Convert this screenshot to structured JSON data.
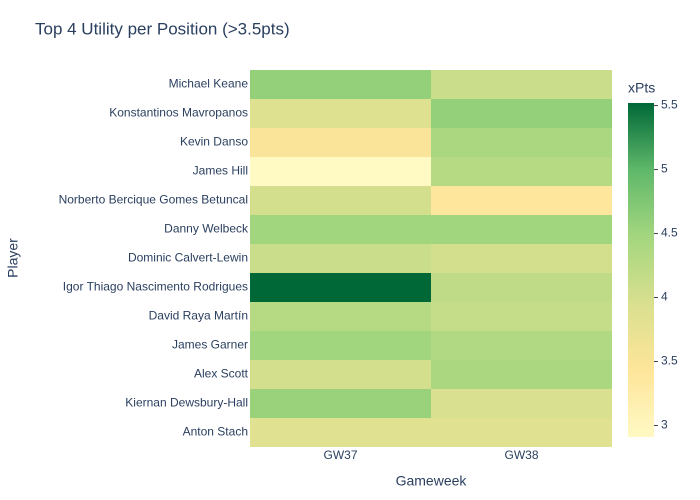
{
  "chart_data": {
    "type": "heatmap",
    "title": "Top 4 Utility per Position (>3.5pts)",
    "x_label": "Gameweek",
    "y_label": "Player",
    "colorbar_title": "xPts",
    "x": [
      "GW37",
      "GW38"
    ],
    "y": [
      "Michael Keane",
      "Konstantinos Mavropanos",
      "Kevin Danso",
      "James Hill",
      "Norberto Bercique Gomes Betuncal",
      "Danny Welbeck",
      "Dominic Calvert-Lewin",
      "Igor Thiago Nascimento Rodrigues",
      "David Raya Martín",
      "James Garner",
      "Alex Scott",
      "Kiernan Dewsbury-Hall",
      "Anton Stach"
    ],
    "z": [
      [
        4.6,
        4.1
      ],
      [
        3.9,
        4.6
      ],
      [
        3.5,
        4.4
      ],
      [
        2.91,
        4.3
      ],
      [
        4.0,
        3.4
      ],
      [
        4.5,
        4.5
      ],
      [
        4.1,
        4.0
      ],
      [
        5.52,
        4.2
      ],
      [
        4.3,
        4.15
      ],
      [
        4.5,
        4.35
      ],
      [
        4.0,
        4.4
      ],
      [
        4.55,
        3.95
      ],
      [
        3.85,
        3.85
      ]
    ],
    "zlim": [
      2.91,
      5.52
    ],
    "zticks": [
      3,
      3.5,
      4,
      4.5,
      5,
      5.5
    ],
    "colorscale": [
      [
        0,
        "#fff9c4"
      ],
      [
        0.2,
        "#fee59a"
      ],
      [
        0.4,
        "#d9e08f"
      ],
      [
        0.6,
        "#a4d67f"
      ],
      [
        0.8,
        "#5fb86a"
      ],
      [
        1,
        "#006837"
      ]
    ]
  }
}
